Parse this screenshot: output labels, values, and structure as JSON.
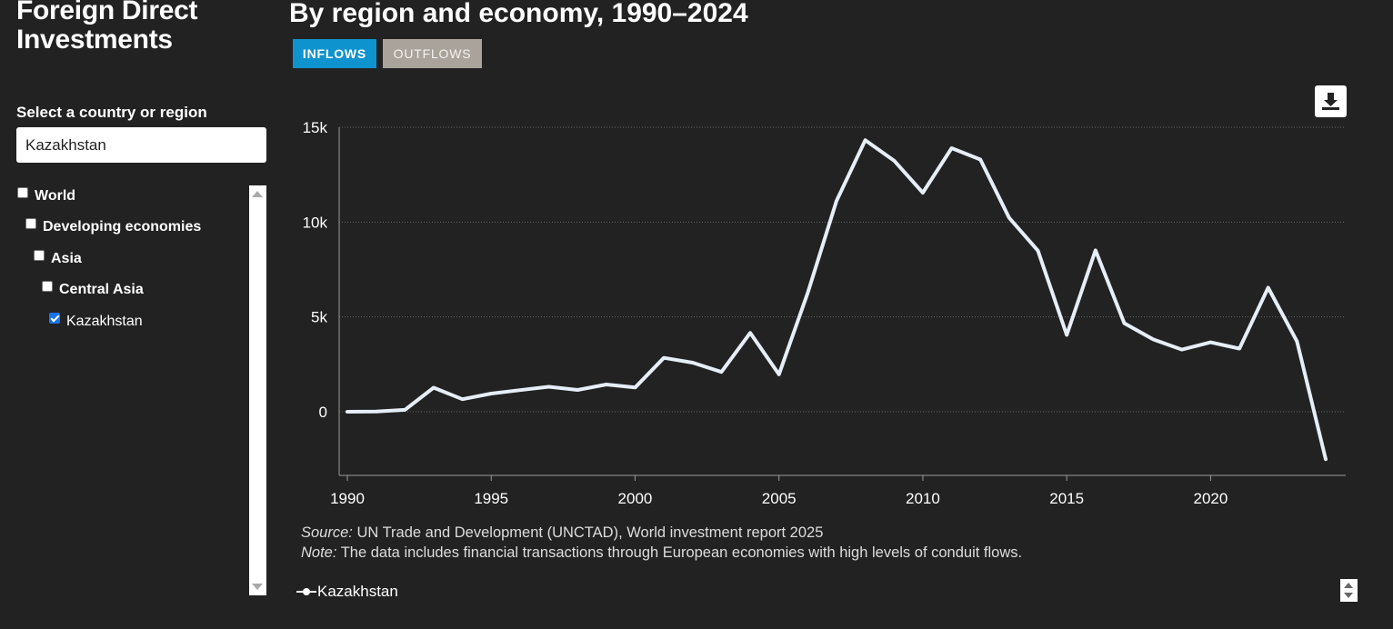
{
  "header": {
    "page_title": "Foreign Direct Investments",
    "chart_title": "By region and economy, 1990–2024"
  },
  "tabs": [
    {
      "label": "INFLOWS",
      "active": true,
      "color": "#0f93cf"
    },
    {
      "label": "OUTFLOWS",
      "active": false,
      "color": "#aaa39b"
    }
  ],
  "sidebar": {
    "select_label": "Select a country or region",
    "search_value": "Kazakhstan",
    "tree": [
      {
        "label": "World",
        "checked": false,
        "level": 0
      },
      {
        "label": "Developing economies",
        "checked": false,
        "level": 1
      },
      {
        "label": "Asia",
        "checked": false,
        "level": 2
      },
      {
        "label": "Central Asia",
        "checked": false,
        "level": 3
      },
      {
        "label": "Kazakhstan",
        "checked": true,
        "level": 4
      }
    ]
  },
  "toolbar": {
    "download_icon": "download-icon"
  },
  "notes": {
    "source_prefix": "Source:",
    "source_text": " UN Trade and Development (UNCTAD), World investment report 2025",
    "note_prefix": "Note:",
    "note_text": " The data includes financial transactions through European economies with high levels of conduit flows."
  },
  "legend": {
    "label": "Kazakhstan"
  },
  "chart_data": {
    "type": "line",
    "title": "By region and economy, 1990–2024",
    "xlabel": "",
    "ylabel": "",
    "xlim": [
      1990,
      2024
    ],
    "ylim": [
      -3400,
      15000
    ],
    "x_ticks": [
      1990,
      1995,
      2000,
      2005,
      2010,
      2015,
      2020
    ],
    "y_ticks": [
      0,
      5000,
      10000,
      15000
    ],
    "y_tick_labels": [
      "0",
      "5k",
      "10k",
      "15k"
    ],
    "grid": true,
    "legend_position": "bottom-left",
    "colors": {
      "line": "#e6eef8",
      "grid": "#666666",
      "axis": "#9a9a9a"
    },
    "series": [
      {
        "name": "Kazakhstan",
        "x": [
          1990,
          1991,
          1992,
          1993,
          1994,
          1995,
          1996,
          1997,
          1998,
          1999,
          2000,
          2001,
          2002,
          2003,
          2004,
          2005,
          2006,
          2007,
          2008,
          2009,
          2010,
          2011,
          2012,
          2013,
          2014,
          2015,
          2016,
          2017,
          2018,
          2019,
          2020,
          2021,
          2022,
          2023,
          2024
        ],
        "values": [
          0,
          10,
          100,
          1270,
          660,
          960,
          1140,
          1320,
          1150,
          1440,
          1280,
          2840,
          2590,
          2100,
          4160,
          1970,
          6280,
          11120,
          14320,
          13240,
          11550,
          13900,
          13300,
          10220,
          8490,
          4050,
          8510,
          4670,
          3820,
          3280,
          3660,
          3330,
          6540,
          3710,
          -2500
        ]
      }
    ]
  }
}
